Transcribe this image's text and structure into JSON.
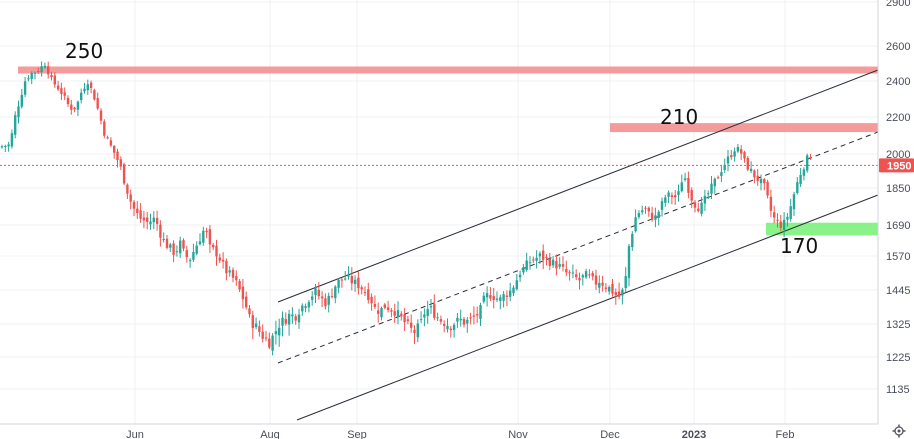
{
  "chart_data": {
    "type": "candlestick",
    "x_ticks": [
      "Jun",
      "Aug",
      "Sep",
      "Nov",
      "Dec",
      "2023",
      "Feb"
    ],
    "y_ticks": [
      2900,
      2600,
      2400,
      2200,
      2000,
      1850,
      1690,
      1570,
      1445,
      1325,
      1225,
      1135
    ],
    "ylim": [
      1050,
      2950
    ],
    "last_price": "1950",
    "annotations": [
      "250",
      "210",
      "170"
    ],
    "resistance_zones": [
      2460,
      2140
    ],
    "support_zone": [
      1650,
      1700
    ],
    "colors": {
      "up": "#26a69a",
      "down": "#ef5350",
      "zone_red": "#f28b8b",
      "zone_green": "#7cf27c",
      "badge": "#ef5350"
    },
    "close_path": [
      [
        0,
        2040
      ],
      [
        10,
        2050
      ],
      [
        15,
        2200
      ],
      [
        20,
        2300
      ],
      [
        25,
        2400
      ],
      [
        30,
        2440
      ],
      [
        38,
        2460
      ],
      [
        45,
        2500
      ],
      [
        52,
        2400
      ],
      [
        60,
        2350
      ],
      [
        65,
        2300
      ],
      [
        70,
        2250
      ],
      [
        76,
        2250
      ],
      [
        82,
        2350
      ],
      [
        88,
        2400
      ],
      [
        95,
        2300
      ],
      [
        100,
        2200
      ],
      [
        105,
        2100
      ],
      [
        110,
        2050
      ],
      [
        115,
        2000
      ],
      [
        120,
        1950
      ],
      [
        125,
        1870
      ],
      [
        130,
        1800
      ],
      [
        135,
        1750
      ],
      [
        140,
        1720
      ],
      [
        148,
        1700
      ],
      [
        155,
        1720
      ],
      [
        160,
        1660
      ],
      [
        165,
        1620
      ],
      [
        170,
        1600
      ],
      [
        175,
        1580
      ],
      [
        180,
        1620
      ],
      [
        185,
        1570
      ],
      [
        190,
        1560
      ],
      [
        195,
        1600
      ],
      [
        200,
        1640
      ],
      [
        205,
        1680
      ],
      [
        210,
        1600
      ],
      [
        215,
        1590
      ],
      [
        220,
        1560
      ],
      [
        225,
        1520
      ],
      [
        230,
        1500
      ],
      [
        235,
        1480
      ],
      [
        240,
        1440
      ],
      [
        245,
        1400
      ],
      [
        250,
        1340
      ],
      [
        255,
        1320
      ],
      [
        260,
        1300
      ],
      [
        265,
        1280
      ],
      [
        270,
        1270
      ],
      [
        275,
        1300
      ],
      [
        280,
        1330
      ],
      [
        285,
        1340
      ],
      [
        290,
        1360
      ],
      [
        295,
        1350
      ],
      [
        300,
        1380
      ],
      [
        305,
        1400
      ],
      [
        310,
        1420
      ],
      [
        315,
        1440
      ],
      [
        320,
        1420
      ],
      [
        325,
        1400
      ],
      [
        330,
        1420
      ],
      [
        335,
        1460
      ],
      [
        340,
        1480
      ],
      [
        345,
        1490
      ],
      [
        350,
        1480
      ],
      [
        355,
        1470
      ],
      [
        360,
        1460
      ],
      [
        365,
        1440
      ],
      [
        370,
        1420
      ],
      [
        375,
        1380
      ],
      [
        380,
        1370
      ],
      [
        385,
        1390
      ],
      [
        390,
        1380
      ],
      [
        395,
        1370
      ],
      [
        400,
        1350
      ],
      [
        405,
        1330
      ],
      [
        410,
        1310
      ],
      [
        415,
        1300
      ],
      [
        420,
        1320
      ],
      [
        425,
        1370
      ],
      [
        430,
        1380
      ],
      [
        435,
        1360
      ],
      [
        440,
        1340
      ],
      [
        445,
        1330
      ],
      [
        450,
        1320
      ],
      [
        455,
        1330
      ],
      [
        460,
        1340
      ],
      [
        465,
        1330
      ],
      [
        470,
        1340
      ],
      [
        475,
        1350
      ],
      [
        480,
        1370
      ],
      [
        485,
        1420
      ],
      [
        490,
        1430
      ],
      [
        495,
        1420
      ],
      [
        500,
        1410
      ],
      [
        505,
        1430
      ],
      [
        510,
        1440
      ],
      [
        515,
        1470
      ],
      [
        520,
        1510
      ],
      [
        525,
        1530
      ],
      [
        530,
        1550
      ],
      [
        535,
        1560
      ],
      [
        540,
        1570
      ],
      [
        545,
        1560
      ],
      [
        550,
        1550
      ],
      [
        555,
        1540
      ],
      [
        560,
        1530
      ],
      [
        565,
        1510
      ],
      [
        570,
        1500
      ],
      [
        575,
        1490
      ],
      [
        580,
        1480
      ],
      [
        585,
        1500
      ],
      [
        590,
        1490
      ],
      [
        595,
        1470
      ],
      [
        600,
        1480
      ],
      [
        605,
        1460
      ],
      [
        610,
        1450
      ],
      [
        615,
        1430
      ],
      [
        620,
        1420
      ],
      [
        625,
        1460
      ],
      [
        628,
        1590
      ],
      [
        632,
        1660
      ],
      [
        636,
        1730
      ],
      [
        640,
        1750
      ],
      [
        645,
        1760
      ],
      [
        650,
        1730
      ],
      [
        655,
        1720
      ],
      [
        660,
        1760
      ],
      [
        665,
        1810
      ],
      [
        670,
        1820
      ],
      [
        675,
        1810
      ],
      [
        680,
        1830
      ],
      [
        683,
        1920
      ],
      [
        687,
        1870
      ],
      [
        690,
        1820
      ],
      [
        695,
        1780
      ],
      [
        700,
        1760
      ],
      [
        705,
        1800
      ],
      [
        710,
        1840
      ],
      [
        715,
        1880
      ],
      [
        720,
        1920
      ],
      [
        725,
        1960
      ],
      [
        730,
        1990
      ],
      [
        735,
        2030
      ],
      [
        740,
        2020
      ],
      [
        745,
        1960
      ],
      [
        750,
        1930
      ],
      [
        755,
        1900
      ],
      [
        760,
        1880
      ],
      [
        765,
        1850
      ],
      [
        770,
        1760
      ],
      [
        775,
        1710
      ],
      [
        780,
        1690
      ],
      [
        785,
        1700
      ],
      [
        790,
        1760
      ],
      [
        795,
        1840
      ],
      [
        800,
        1910
      ],
      [
        805,
        1960
      ],
      [
        810,
        2000
      ],
      [
        815,
        1940
      ]
    ]
  }
}
